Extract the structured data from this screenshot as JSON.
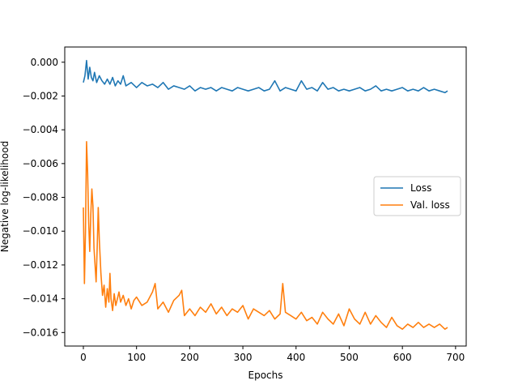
{
  "chart_data": {
    "type": "line",
    "title": "",
    "xlabel": "Epochs",
    "ylabel": "Negative log-likelihood",
    "xlim": [
      -35,
      720
    ],
    "ylim": [
      -0.0168,
      0.0009
    ],
    "xticks": [
      0,
      100,
      200,
      300,
      400,
      500,
      600,
      700
    ],
    "xtick_labels": [
      "0",
      "100",
      "200",
      "300",
      "400",
      "500",
      "600",
      "700"
    ],
    "yticks": [
      0.0,
      -0.002,
      -0.004,
      -0.006,
      -0.008,
      -0.01,
      -0.012,
      -0.014,
      -0.016
    ],
    "ytick_labels": [
      "0.000",
      "−0.002",
      "−0.004",
      "−0.006",
      "−0.008",
      "−0.010",
      "−0.012",
      "−0.014",
      "−0.016"
    ],
    "grid": false,
    "legend_position": "center-right",
    "series": [
      {
        "name": "Loss",
        "color": "#1f77b4",
        "x": [
          0,
          3,
          6,
          9,
          12,
          15,
          18,
          21,
          25,
          30,
          35,
          40,
          45,
          50,
          55,
          60,
          65,
          70,
          75,
          80,
          90,
          100,
          110,
          120,
          130,
          140,
          150,
          160,
          170,
          180,
          190,
          200,
          210,
          220,
          230,
          240,
          250,
          260,
          270,
          280,
          290,
          300,
          310,
          320,
          330,
          340,
          350,
          360,
          370,
          380,
          390,
          400,
          410,
          420,
          430,
          440,
          450,
          460,
          470,
          480,
          490,
          500,
          510,
          520,
          530,
          540,
          550,
          560,
          570,
          580,
          590,
          600,
          610,
          620,
          630,
          640,
          650,
          660,
          670,
          680,
          685
        ],
        "y": [
          -0.0012,
          -0.0008,
          0.0001,
          -0.001,
          -0.0003,
          -0.0009,
          -0.0011,
          -0.0006,
          -0.0012,
          -0.0008,
          -0.0011,
          -0.0013,
          -0.001,
          -0.0013,
          -0.0009,
          -0.0014,
          -0.0011,
          -0.0013,
          -0.0008,
          -0.0014,
          -0.0012,
          -0.0015,
          -0.0012,
          -0.0014,
          -0.0013,
          -0.0015,
          -0.0012,
          -0.0016,
          -0.0014,
          -0.0015,
          -0.0016,
          -0.0014,
          -0.0017,
          -0.0015,
          -0.0016,
          -0.0015,
          -0.0017,
          -0.0015,
          -0.0016,
          -0.0017,
          -0.0015,
          -0.0016,
          -0.0017,
          -0.0016,
          -0.0015,
          -0.0017,
          -0.0016,
          -0.0011,
          -0.0017,
          -0.0015,
          -0.0016,
          -0.0017,
          -0.0011,
          -0.0016,
          -0.0015,
          -0.0017,
          -0.0012,
          -0.0016,
          -0.0015,
          -0.0017,
          -0.0016,
          -0.0017,
          -0.0016,
          -0.0015,
          -0.0017,
          -0.0016,
          -0.0014,
          -0.0017,
          -0.0016,
          -0.0017,
          -0.0016,
          -0.0015,
          -0.0017,
          -0.0016,
          -0.0017,
          -0.0015,
          -0.0017,
          -0.0016,
          -0.0017,
          -0.0018,
          -0.0017
        ]
      },
      {
        "name": "Val. loss",
        "color": "#ff7f0e",
        "x": [
          0,
          2,
          4,
          6,
          8,
          10,
          12,
          14,
          16,
          18,
          20,
          22,
          24,
          26,
          28,
          30,
          33,
          36,
          39,
          42,
          45,
          48,
          50,
          52,
          55,
          58,
          61,
          64,
          67,
          70,
          75,
          80,
          85,
          90,
          95,
          100,
          110,
          120,
          130,
          135,
          140,
          150,
          160,
          170,
          180,
          185,
          190,
          200,
          210,
          220,
          230,
          240,
          250,
          260,
          270,
          280,
          290,
          300,
          310,
          320,
          330,
          340,
          350,
          360,
          370,
          375,
          380,
          390,
          400,
          410,
          420,
          430,
          440,
          450,
          460,
          470,
          480,
          490,
          500,
          510,
          520,
          530,
          540,
          550,
          560,
          570,
          580,
          590,
          600,
          610,
          620,
          630,
          640,
          650,
          660,
          670,
          680,
          685
        ],
        "y": [
          -0.0086,
          -0.0131,
          -0.01,
          -0.0047,
          -0.0065,
          -0.0095,
          -0.0112,
          -0.009,
          -0.0075,
          -0.0085,
          -0.011,
          -0.012,
          -0.013,
          -0.011,
          -0.0086,
          -0.0105,
          -0.0125,
          -0.0138,
          -0.0132,
          -0.0145,
          -0.0134,
          -0.0142,
          -0.0125,
          -0.014,
          -0.0147,
          -0.0137,
          -0.0144,
          -0.014,
          -0.0136,
          -0.0142,
          -0.0138,
          -0.0144,
          -0.014,
          -0.0146,
          -0.0141,
          -0.0139,
          -0.0144,
          -0.0142,
          -0.0136,
          -0.0131,
          -0.0146,
          -0.0142,
          -0.0148,
          -0.0141,
          -0.0138,
          -0.0135,
          -0.015,
          -0.0146,
          -0.015,
          -0.0145,
          -0.0148,
          -0.0143,
          -0.0149,
          -0.0145,
          -0.015,
          -0.0146,
          -0.0148,
          -0.0144,
          -0.0152,
          -0.0146,
          -0.0148,
          -0.015,
          -0.0147,
          -0.0152,
          -0.0149,
          -0.0131,
          -0.0148,
          -0.015,
          -0.0152,
          -0.0148,
          -0.0153,
          -0.0151,
          -0.0155,
          -0.0148,
          -0.0152,
          -0.0155,
          -0.0149,
          -0.0156,
          -0.0146,
          -0.0152,
          -0.0155,
          -0.0148,
          -0.0155,
          -0.015,
          -0.0154,
          -0.0157,
          -0.0151,
          -0.0156,
          -0.0158,
          -0.0155,
          -0.0157,
          -0.0154,
          -0.0157,
          -0.0155,
          -0.0157,
          -0.0155,
          -0.0158,
          -0.0157
        ]
      }
    ]
  }
}
